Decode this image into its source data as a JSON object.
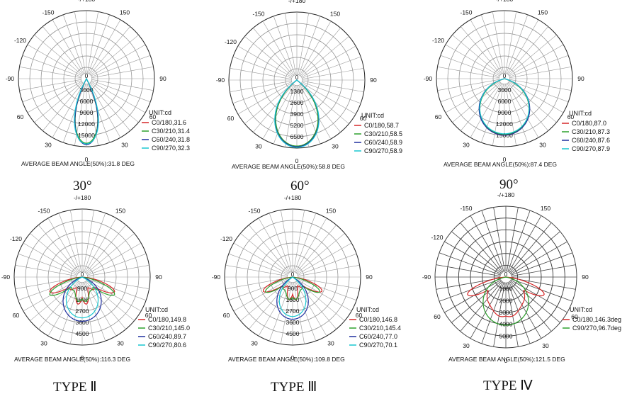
{
  "chart_data": [
    {
      "type": "polar",
      "caption": "30°",
      "unit_label": "UNIT:cd",
      "beam_note": "AVERAGE BEAM ANGLE(50%):31.8 DEG",
      "angle_labels": [
        "-/+180",
        "150",
        "90",
        "60",
        "30",
        "0",
        "30",
        "60",
        "-90",
        "-120",
        "-150"
      ],
      "radial_labels": [
        "0",
        "3000",
        "6000",
        "9000",
        "12000",
        "15000"
      ],
      "series": [
        {
          "name": "C0/180,31.6",
          "color": "#d62728",
          "lobe": {
            "type": "beam",
            "half_angle": 17,
            "peak": 0.96
          }
        },
        {
          "name": "C30/210,31.4",
          "color": "#2ca02c",
          "lobe": {
            "type": "beam",
            "half_angle": 17,
            "peak": 0.95
          }
        },
        {
          "name": "C60/240,31.8",
          "color": "#1f2f9f",
          "lobe": {
            "type": "beam",
            "half_angle": 17,
            "peak": 0.97
          }
        },
        {
          "name": "C90/270,32.3",
          "color": "#19c7d1",
          "lobe": {
            "type": "beam",
            "half_angle": 18,
            "peak": 0.96
          }
        }
      ]
    },
    {
      "type": "polar",
      "caption": "60°",
      "unit_label": "UNIT:cd",
      "beam_note": "AVERAGE BEAM ANGLE(50%):58.8 DEG",
      "angle_labels": [
        "-/+180",
        "150",
        "90",
        "60",
        "30",
        "0",
        "30",
        "60",
        "-90",
        "-120",
        "-150"
      ],
      "radial_labels": [
        "0",
        "1300",
        "2600",
        "3900",
        "5200",
        "6500"
      ],
      "series": [
        {
          "name": "C0/180,58.7",
          "color": "#d62728",
          "lobe": {
            "type": "beam",
            "half_angle": 32,
            "peak": 0.98
          }
        },
        {
          "name": "C30/210,58.5",
          "color": "#2ca02c",
          "lobe": {
            "type": "beam",
            "half_angle": 32,
            "peak": 0.97
          }
        },
        {
          "name": "C60/240,58.9",
          "color": "#1f2f9f",
          "lobe": {
            "type": "beam",
            "half_angle": 33,
            "peak": 0.98
          }
        },
        {
          "name": "C90/270,58.9",
          "color": "#19c7d1",
          "lobe": {
            "type": "beam",
            "half_angle": 33,
            "peak": 0.99
          }
        }
      ]
    },
    {
      "type": "polar",
      "caption": "90°",
      "unit_label": "UNIT:cd",
      "beam_note": "AVERAGE BEAM ANGLE(50%):87.4 DEG",
      "angle_labels": [
        "-/+180",
        "150",
        "90",
        "60",
        "30",
        "0",
        "30",
        "60",
        "-90",
        "-120",
        "-150"
      ],
      "radial_labels": [
        "0",
        "3000",
        "6000",
        "9000",
        "12000",
        "15000"
      ],
      "series": [
        {
          "name": "C0/180,87.0",
          "color": "#d62728",
          "lobe": {
            "type": "beam",
            "half_angle": 46,
            "peak": 0.83
          }
        },
        {
          "name": "C30/210,87.3",
          "color": "#2ca02c",
          "lobe": {
            "type": "beam",
            "half_angle": 46,
            "peak": 0.82
          }
        },
        {
          "name": "C60/240,87.6",
          "color": "#1f2f9f",
          "lobe": {
            "type": "beam",
            "half_angle": 47,
            "peak": 0.83
          }
        },
        {
          "name": "C90/270,87.9",
          "color": "#19c7d1",
          "lobe": {
            "type": "beam",
            "half_angle": 47,
            "peak": 0.81
          }
        }
      ]
    },
    {
      "type": "polar",
      "caption": "TYPE Ⅱ",
      "unit_label": "UNIT:cd",
      "beam_note": "AVERAGE BEAM ANGLE(50%):116.3 DEG",
      "angle_labels": [
        "-/+180",
        "150",
        "90",
        "60",
        "30",
        "0",
        "30",
        "60",
        "-90",
        "-120",
        "-150"
      ],
      "radial_labels": [
        "0",
        "900",
        "1800",
        "2700",
        "3600",
        "4500"
      ],
      "series": [
        {
          "name": "C0/180,149.8",
          "color": "#d62728",
          "lobe": {
            "type": "wing",
            "spread": 74,
            "peak": 0.55,
            "center": 0.3,
            "wobble": 0.12
          }
        },
        {
          "name": "C30/210,145.0",
          "color": "#2ca02c",
          "lobe": {
            "type": "wing",
            "spread": 70,
            "peak": 0.55,
            "center": 0.32,
            "wobble": 0.05
          }
        },
        {
          "name": "C60/240,89.7",
          "color": "#1f2f9f",
          "lobe": {
            "type": "beam",
            "half_angle": 45,
            "peak": 0.65
          }
        },
        {
          "name": "C90/270,80.6",
          "color": "#19c7d1",
          "lobe": {
            "type": "beam",
            "half_angle": 40,
            "peak": 0.6
          }
        }
      ]
    },
    {
      "type": "polar",
      "caption": "TYPE Ⅲ",
      "unit_label": "UNIT:cd",
      "beam_note": "AVERAGE BEAM ANGLE(50%):109.8 DEG",
      "angle_labels": [
        "-/+180",
        "150",
        "90",
        "60",
        "30",
        "0",
        "30",
        "60",
        "-90",
        "-120",
        "-150"
      ],
      "radial_labels": [
        "0",
        "900",
        "1800",
        "2700",
        "3600",
        "4500"
      ],
      "series": [
        {
          "name": "C0/180,146.8",
          "color": "#d62728",
          "lobe": {
            "type": "wing",
            "spread": 73,
            "peak": 0.5,
            "center": 0.25,
            "wobble": 0.1
          }
        },
        {
          "name": "C30/210,145.4",
          "color": "#2ca02c",
          "lobe": {
            "type": "wing",
            "spread": 70,
            "peak": 0.46,
            "center": 0.3,
            "wobble": 0.04
          }
        },
        {
          "name": "C60/240,77.0",
          "color": "#1f2f9f",
          "lobe": {
            "type": "beam",
            "half_angle": 38,
            "peak": 0.62
          }
        },
        {
          "name": "C90/270,70.1",
          "color": "#19c7d1",
          "lobe": {
            "type": "beam",
            "half_angle": 34,
            "peak": 0.58
          }
        }
      ]
    },
    {
      "type": "polar",
      "caption": "TYPE Ⅳ",
      "unit_label": "UNIT:cd",
      "beam_note": "AVERAGE BEAM ANGLE(50%):121.5 DEG",
      "angle_labels": [
        "-/+180",
        "150",
        "90",
        "60",
        "30",
        "0",
        "30",
        "60",
        "-90",
        "-120",
        "-150"
      ],
      "radial_labels": [
        "0",
        "1000",
        "2000",
        "3000",
        "4000",
        "5000"
      ],
      "series": [
        {
          "name": "C0/180,146.3deg",
          "color": "#d62728",
          "lobe": {
            "type": "wing",
            "spread": 74,
            "peak": 0.6,
            "center": 0.55,
            "wobble": 0.02
          }
        },
        {
          "name": "C90/270,96.7deg",
          "color": "#2ca02c",
          "lobe": {
            "type": "beam",
            "half_angle": 50,
            "peak": 0.68
          }
        }
      ]
    }
  ]
}
